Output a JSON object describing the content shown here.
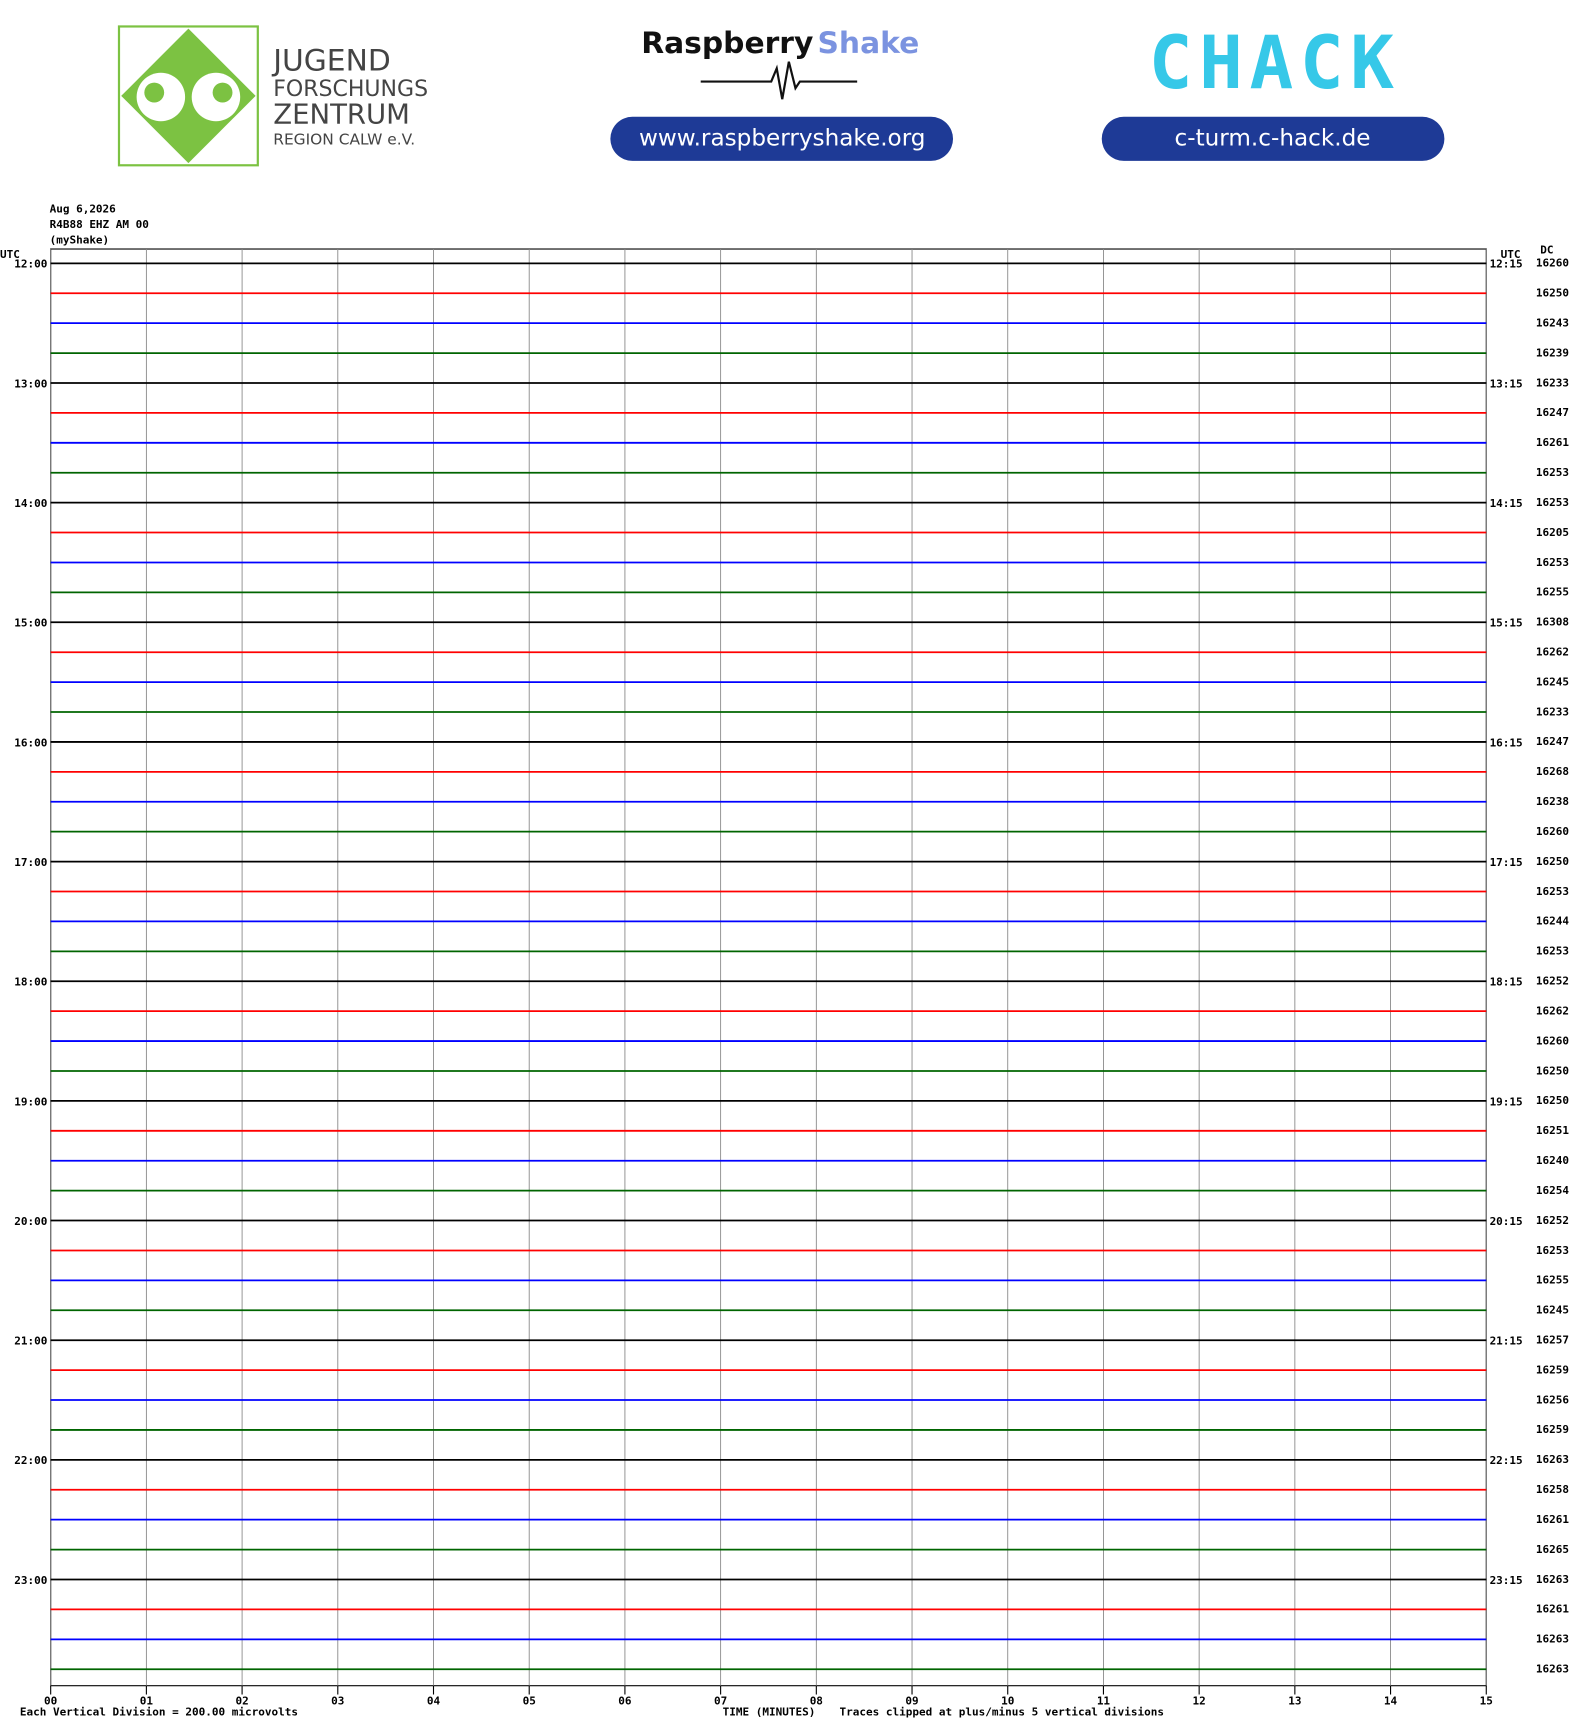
{
  "header": {
    "jfz_lines": [
      "JUGEND",
      "FORSCHUNGS",
      "ZENTRUM",
      "REGION CALW e.V."
    ],
    "rs_word1": "Raspberry",
    "rs_word2": "Shake",
    "rs_url": "www.raspberryshake.org",
    "chack": "CHACK",
    "chack_url": "c-turm.c-hack.de"
  },
  "chart_data": {
    "type": "helicorder",
    "date": "Aug 6,2026",
    "station": "R4B88 EHZ AM 00",
    "source": "(myShake)",
    "left_unit": "UTC",
    "right_unit": "UTC",
    "dc_title": "DC",
    "left_labels": [
      "12:00",
      "13:00",
      "14:00",
      "15:00",
      "16:00",
      "17:00",
      "18:00",
      "19:00",
      "20:00",
      "21:00",
      "22:00",
      "23:00"
    ],
    "right_labels": [
      "12:15",
      "13:15",
      "14:15",
      "15:15",
      "16:15",
      "17:15",
      "18:15",
      "19:15",
      "20:15",
      "21:15",
      "22:15",
      "23:15"
    ],
    "dc": [
      16260,
      16250,
      16243,
      16239,
      16233,
      16247,
      16261,
      16253,
      16253,
      16205,
      16253,
      16255,
      16308,
      16262,
      16245,
      16233,
      16247,
      16268,
      16238,
      16260,
      16250,
      16253,
      16244,
      16253,
      16252,
      16262,
      16260,
      16250,
      16250,
      16251,
      16240,
      16254,
      16252,
      16253,
      16255,
      16245,
      16257,
      16259,
      16256,
      16259,
      16263,
      16258,
      16261,
      16265,
      16263,
      16261,
      16263,
      16263
    ],
    "trace_colors": [
      "#000000",
      "#ff0000",
      "#0000ff",
      "#006400"
    ],
    "xlim": [
      0,
      15
    ],
    "xticks": [
      {
        "value": 0,
        "label": "00"
      },
      {
        "value": 1,
        "label": "01"
      },
      {
        "value": 2,
        "label": "02"
      },
      {
        "value": 3,
        "label": "03"
      },
      {
        "value": 4,
        "label": "04"
      },
      {
        "value": 5,
        "label": "05"
      },
      {
        "value": 6,
        "label": "06"
      },
      {
        "value": 7,
        "label": "07"
      },
      {
        "value": 8,
        "label": "08"
      },
      {
        "value": 9,
        "label": "09"
      },
      {
        "value": 10,
        "label": "10"
      },
      {
        "value": 11,
        "label": "11"
      },
      {
        "value": 12,
        "label": "12"
      },
      {
        "value": 13,
        "label": "13"
      },
      {
        "value": 14,
        "label": "14"
      },
      {
        "value": 15,
        "label": "15"
      }
    ],
    "xlabel": "TIME (MINUTES)",
    "scale_note": "Each Vertical Division =  200.00 microvolts",
    "clip_note": "Traces clipped at plus/minus 5 vertical divisions"
  }
}
